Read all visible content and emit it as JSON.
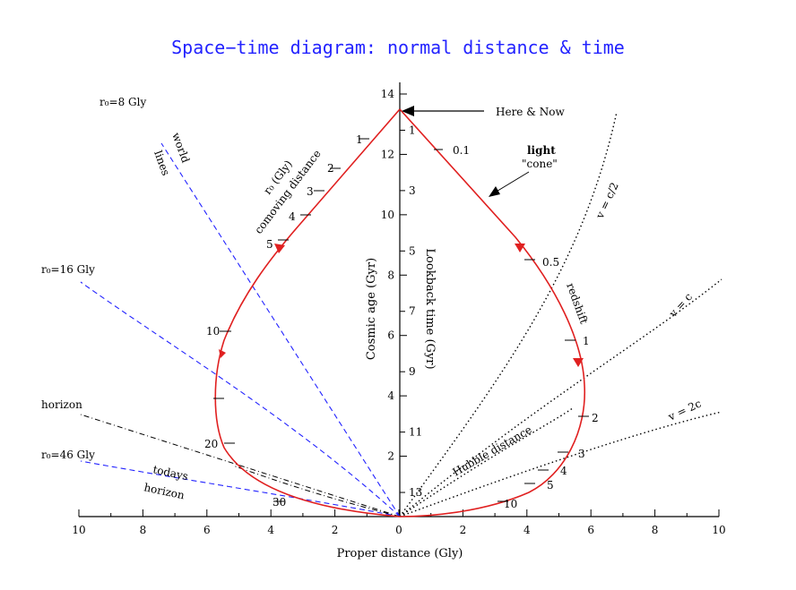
{
  "title": "Space−time diagram: normal distance & time",
  "axes": {
    "x_label": "Proper distance (Gly)",
    "x_ticks": [
      "10",
      "8",
      "6",
      "4",
      "2",
      "0",
      "2",
      "4",
      "6",
      "8",
      "10"
    ],
    "y_left_label": "Cosmic age (Gyr)",
    "y_left_ticks": [
      "2",
      "4",
      "6",
      "8",
      "10",
      "12",
      "14"
    ],
    "y_right_label": "Lookback time (Gyr)",
    "y_right_ticks": [
      "1",
      "3",
      "5",
      "7",
      "9",
      "11",
      "13"
    ]
  },
  "annotations": {
    "here_now": "Here & Now",
    "light": "light",
    "cone": "\"cone\"",
    "redshift_label": "redshift",
    "world": "world",
    "lines": "lines",
    "r_o_gly": "r₀ (Gly)",
    "comoving_distance": "comoving distance",
    "r8": "r₀=8 Gly",
    "r16": "r₀=16 Gly",
    "r46": "r₀=46 Gly",
    "horizon": "horizon",
    "todays": "todays",
    "todays_horizon": "horizon",
    "hubble_distance": "Hubble distance",
    "v_c2": "v = c/2",
    "v_c": "v = c",
    "v_2c": "v = 2c"
  },
  "comoving_labels": [
    "1",
    "2",
    "3",
    "4",
    "5",
    "10",
    "20",
    "30"
  ],
  "redshift_labels": [
    "0.1",
    "0.5",
    "1",
    "2",
    "3",
    "4",
    "5",
    "10"
  ],
  "colors": {
    "title": "#2323ff",
    "light_cone": "#e02020",
    "world_lines": "#2323ff",
    "horizon": "#000000",
    "velocity_lines": "#000000"
  }
}
